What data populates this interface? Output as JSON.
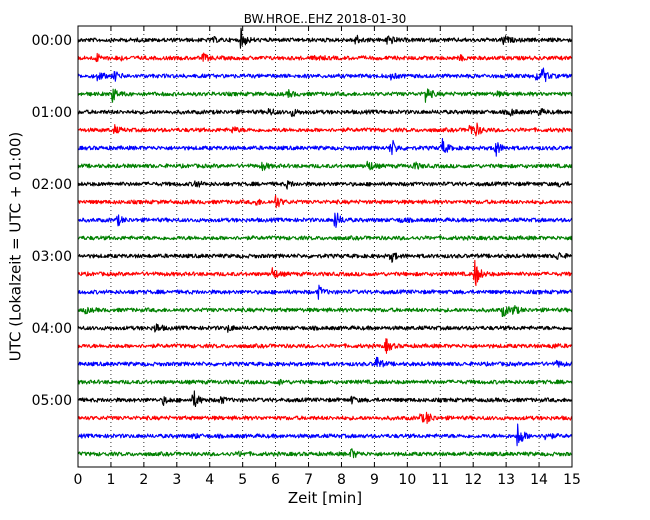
{
  "chart_data": {
    "type": "line",
    "title": "BW.HROE..EHZ 2018-01-30",
    "xlabel": "Zeit  [min]",
    "ylabel": "UTC (Lokalzeit = UTC + 01:00)",
    "xlim": [
      0,
      15
    ],
    "x_ticks": [
      0,
      1,
      2,
      3,
      4,
      5,
      6,
      7,
      8,
      9,
      10,
      11,
      12,
      13,
      14,
      15
    ],
    "y_tick_labels": [
      "00:00",
      "01:00",
      "02:00",
      "03:00",
      "04:00",
      "05:00"
    ],
    "grid": "vertical dotted lines at each minute",
    "trace_interval_minutes": 15,
    "colors_cycle": [
      "#000000",
      "#ff0000",
      "#0000ff",
      "#008000"
    ],
    "traces": [
      {
        "start": "00:00",
        "color": "#000000",
        "events": [
          {
            "t": 4.95,
            "amp": 10
          },
          {
            "t": 8.4,
            "amp": 6
          },
          {
            "t": 9.4,
            "amp": 7
          },
          {
            "t": 12.9,
            "amp": 5
          },
          {
            "t": 4.1,
            "amp": 2
          }
        ]
      },
      {
        "start": "00:15",
        "color": "#ff0000",
        "events": [
          {
            "t": 0.55,
            "amp": 4
          },
          {
            "t": 1.2,
            "amp": 3
          },
          {
            "t": 3.8,
            "amp": 4
          },
          {
            "t": 7.2,
            "amp": 3
          },
          {
            "t": 11.6,
            "amp": 2
          }
        ]
      },
      {
        "start": "00:30",
        "color": "#0000ff",
        "events": [
          {
            "t": 0.6,
            "amp": 5
          },
          {
            "t": 1.1,
            "amp": 5
          },
          {
            "t": 14.1,
            "amp": 8
          },
          {
            "t": 13.9,
            "amp": 4
          },
          {
            "t": 9.5,
            "amp": 3
          }
        ]
      },
      {
        "start": "00:45",
        "color": "#008000",
        "events": [
          {
            "t": 1.05,
            "amp": 7
          },
          {
            "t": 6.4,
            "amp": 3
          },
          {
            "t": 10.55,
            "amp": 9
          },
          {
            "t": 12.7,
            "amp": 2
          }
        ]
      },
      {
        "start": "01:00",
        "color": "#000000",
        "events": [
          {
            "t": 5.8,
            "amp": 4
          },
          {
            "t": 6.5,
            "amp": 4
          },
          {
            "t": 13.1,
            "amp": 4
          },
          {
            "t": 14.0,
            "amp": 3
          }
        ]
      },
      {
        "start": "01:15",
        "color": "#ff0000",
        "events": [
          {
            "t": 1.1,
            "amp": 4
          },
          {
            "t": 4.7,
            "amp": 3
          },
          {
            "t": 11.9,
            "amp": 6
          },
          {
            "t": 12.1,
            "amp": 5
          }
        ]
      },
      {
        "start": "01:30",
        "color": "#0000ff",
        "events": [
          {
            "t": 9.5,
            "amp": 10
          },
          {
            "t": 11.05,
            "amp": 9
          },
          {
            "t": 12.65,
            "amp": 10
          }
        ]
      },
      {
        "start": "01:45",
        "color": "#008000",
        "events": [
          {
            "t": 5.6,
            "amp": 4
          },
          {
            "t": 8.8,
            "amp": 6
          },
          {
            "t": 10.2,
            "amp": 4
          }
        ]
      },
      {
        "start": "02:00",
        "color": "#000000",
        "events": [
          {
            "t": 3.55,
            "amp": 4
          },
          {
            "t": 6.35,
            "amp": 3
          },
          {
            "t": 14.6,
            "amp": 2
          }
        ]
      },
      {
        "start": "02:15",
        "color": "#ff0000",
        "events": [
          {
            "t": 5.4,
            "amp": 3
          },
          {
            "t": 6.0,
            "amp": 7
          }
        ]
      },
      {
        "start": "02:30",
        "color": "#0000ff",
        "events": [
          {
            "t": 1.2,
            "amp": 5
          },
          {
            "t": 7.8,
            "amp": 10
          },
          {
            "t": 9.8,
            "amp": 2
          }
        ]
      },
      {
        "start": "02:45",
        "color": "#008000",
        "events": []
      },
      {
        "start": "03:00",
        "color": "#000000",
        "events": [
          {
            "t": 9.5,
            "amp": 6
          },
          {
            "t": 14.55,
            "amp": 4
          }
        ]
      },
      {
        "start": "03:15",
        "color": "#ff0000",
        "events": [
          {
            "t": 5.9,
            "amp": 6
          },
          {
            "t": 12.05,
            "amp": 14
          }
        ]
      },
      {
        "start": "03:30",
        "color": "#0000ff",
        "events": [
          {
            "t": 7.3,
            "amp": 6
          }
        ]
      },
      {
        "start": "03:45",
        "color": "#008000",
        "events": [
          {
            "t": 0.2,
            "amp": 3
          },
          {
            "t": 12.9,
            "amp": 7
          },
          {
            "t": 13.2,
            "amp": 5
          }
        ]
      },
      {
        "start": "04:00",
        "color": "#000000",
        "events": [
          {
            "t": 2.35,
            "amp": 5
          },
          {
            "t": 4.55,
            "amp": 3
          }
        ]
      },
      {
        "start": "04:15",
        "color": "#ff0000",
        "events": [
          {
            "t": 9.35,
            "amp": 7
          },
          {
            "t": 14.4,
            "amp": 2
          }
        ]
      },
      {
        "start": "04:30",
        "color": "#0000ff",
        "events": [
          {
            "t": 9.05,
            "amp": 8
          },
          {
            "t": 14.55,
            "amp": 3
          }
        ]
      },
      {
        "start": "04:45",
        "color": "#008000",
        "events": [
          {
            "t": 6.1,
            "amp": 2
          }
        ]
      },
      {
        "start": "05:00",
        "color": "#000000",
        "events": [
          {
            "t": 3.5,
            "amp": 10
          },
          {
            "t": 2.6,
            "amp": 4
          },
          {
            "t": 4.3,
            "amp": 4
          },
          {
            "t": 8.3,
            "amp": 3
          }
        ]
      },
      {
        "start": "05:15",
        "color": "#ff0000",
        "events": [
          {
            "t": 10.6,
            "amp": 5
          },
          {
            "t": 10.4,
            "amp": 4
          }
        ]
      },
      {
        "start": "05:30",
        "color": "#0000ff",
        "events": [
          {
            "t": 13.35,
            "amp": 14
          },
          {
            "t": 14.2,
            "amp": 5
          },
          {
            "t": 3.5,
            "amp": 2
          }
        ]
      },
      {
        "start": "05:45",
        "color": "#008000",
        "events": [
          {
            "t": 8.3,
            "amp": 5
          },
          {
            "t": 4.9,
            "amp": 2
          }
        ]
      }
    ]
  }
}
